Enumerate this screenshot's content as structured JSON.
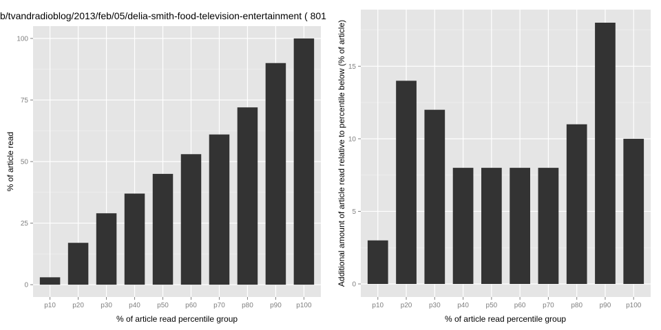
{
  "chart_data": [
    {
      "type": "bar",
      "title": "b/tvandradioblog/2013/feb/05/delia-smith-food-television-entertainment ( 801",
      "xlabel": "% of article read percentile group",
      "ylabel": "% of article read",
      "categories": [
        "p10",
        "p20",
        "p30",
        "p40",
        "p50",
        "p60",
        "p70",
        "p80",
        "p90",
        "p100"
      ],
      "values": [
        3,
        17,
        29,
        37,
        45,
        53,
        61,
        72,
        90,
        100
      ],
      "ylim": [
        0,
        100
      ],
      "yticks": [
        0,
        25,
        50,
        75,
        100
      ],
      "grid": true,
      "bar_color": "#333333",
      "panel_color": "#e5e5e5"
    },
    {
      "type": "bar",
      "title": "",
      "xlabel": "% of article read percentile group",
      "ylabel": "Additional amount of article read relative to percentile below (% of article)",
      "categories": [
        "p10",
        "p20",
        "p30",
        "p40",
        "p50",
        "p60",
        "p70",
        "p80",
        "p90",
        "p100"
      ],
      "values": [
        3,
        14,
        12,
        8,
        8,
        8,
        8,
        11,
        18,
        10
      ],
      "ylim": [
        0,
        18
      ],
      "yticks": [
        0,
        5,
        10,
        15
      ],
      "grid": true,
      "bar_color": "#333333",
      "panel_color": "#e5e5e5"
    }
  ]
}
